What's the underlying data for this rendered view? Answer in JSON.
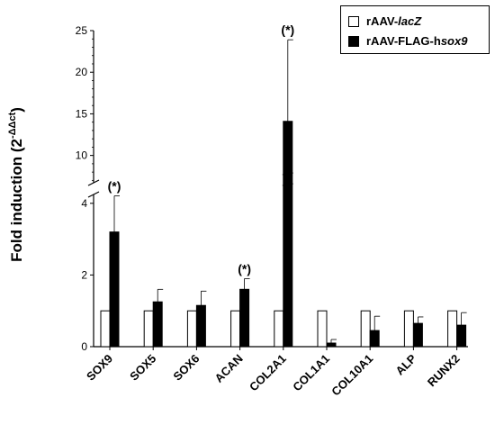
{
  "chart_data": {
    "type": "bar",
    "categories": [
      "SOX9",
      "SOX5",
      "SOX6",
      "ACAN",
      "COL2A1",
      "COL1A1",
      "COL10A1",
      "ALP",
      "RUNX2"
    ],
    "series": [
      {
        "name": "rAAV-lacZ",
        "values": [
          1,
          1,
          1,
          1,
          1,
          1,
          1,
          1,
          1
        ],
        "errors": [
          0,
          0,
          0,
          0,
          0,
          0,
          0,
          0,
          0
        ]
      },
      {
        "name": "rAAV-FLAG-hsox9",
        "values": [
          3.2,
          1.25,
          1.15,
          1.6,
          14.1,
          0.1,
          0.45,
          0.65,
          0.6
        ],
        "errors": [
          1.95,
          0.35,
          0.4,
          0.3,
          9.8,
          0.1,
          0.4,
          0.18,
          0.35
        ]
      }
    ],
    "ylabel": "Fold induction (2-ΔΔct)",
    "broken_axis": {
      "lower": {
        "ylim": [
          0,
          5
        ],
        "ticks": [
          0,
          2,
          4
        ]
      },
      "upper": {
        "ylim": [
          6.5,
          25
        ],
        "ticks": [
          10,
          15,
          20,
          25
        ]
      }
    },
    "annotations": [
      {
        "category": "SOX9",
        "text": "(*)"
      },
      {
        "category": "ACAN",
        "text": "(*)"
      },
      {
        "category": "COL2A1",
        "text": "(*)"
      }
    ],
    "legend": {
      "position": "top-right",
      "items": [
        {
          "prefix": "rAAV-",
          "italic": "lacZ",
          "color": "#ffffff"
        },
        {
          "prefix": "rAAV-FLAG-h",
          "italic": "sox9",
          "color": "#000000"
        }
      ]
    },
    "grid": false
  }
}
